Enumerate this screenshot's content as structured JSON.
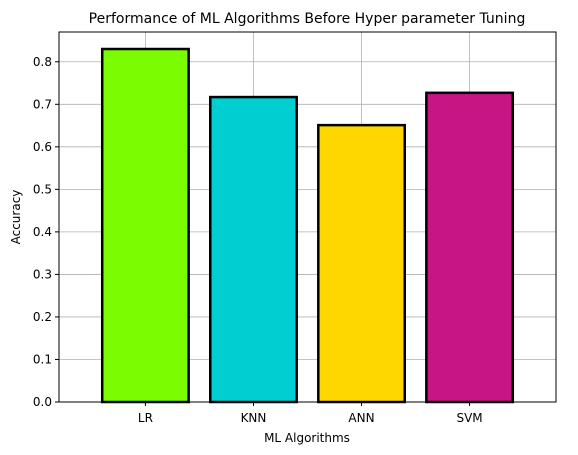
{
  "chart_data": {
    "type": "bar",
    "title": "Performance of ML Algorithms Before Hyper parameter Tuning",
    "xlabel": "ML Algorithms",
    "ylabel": "Accuracy",
    "categories": [
      "LR",
      "KNN",
      "ANN",
      "SVM"
    ],
    "values": [
      0.83,
      0.717,
      0.651,
      0.727
    ],
    "ylim": [
      0,
      0.87
    ],
    "yticks": [
      0.0,
      0.1,
      0.2,
      0.3,
      0.4,
      0.5,
      0.6,
      0.7,
      0.8
    ],
    "ytick_labels": [
      "0.0",
      "0.1",
      "0.2",
      "0.3",
      "0.4",
      "0.5",
      "0.6",
      "0.7",
      "0.8"
    ],
    "grid": true,
    "colors": [
      "#7CFC00",
      "#00CED1",
      "#FFD700",
      "#C71585"
    ],
    "edge_color": "#000000",
    "grid_color": "#b0b0b0"
  }
}
